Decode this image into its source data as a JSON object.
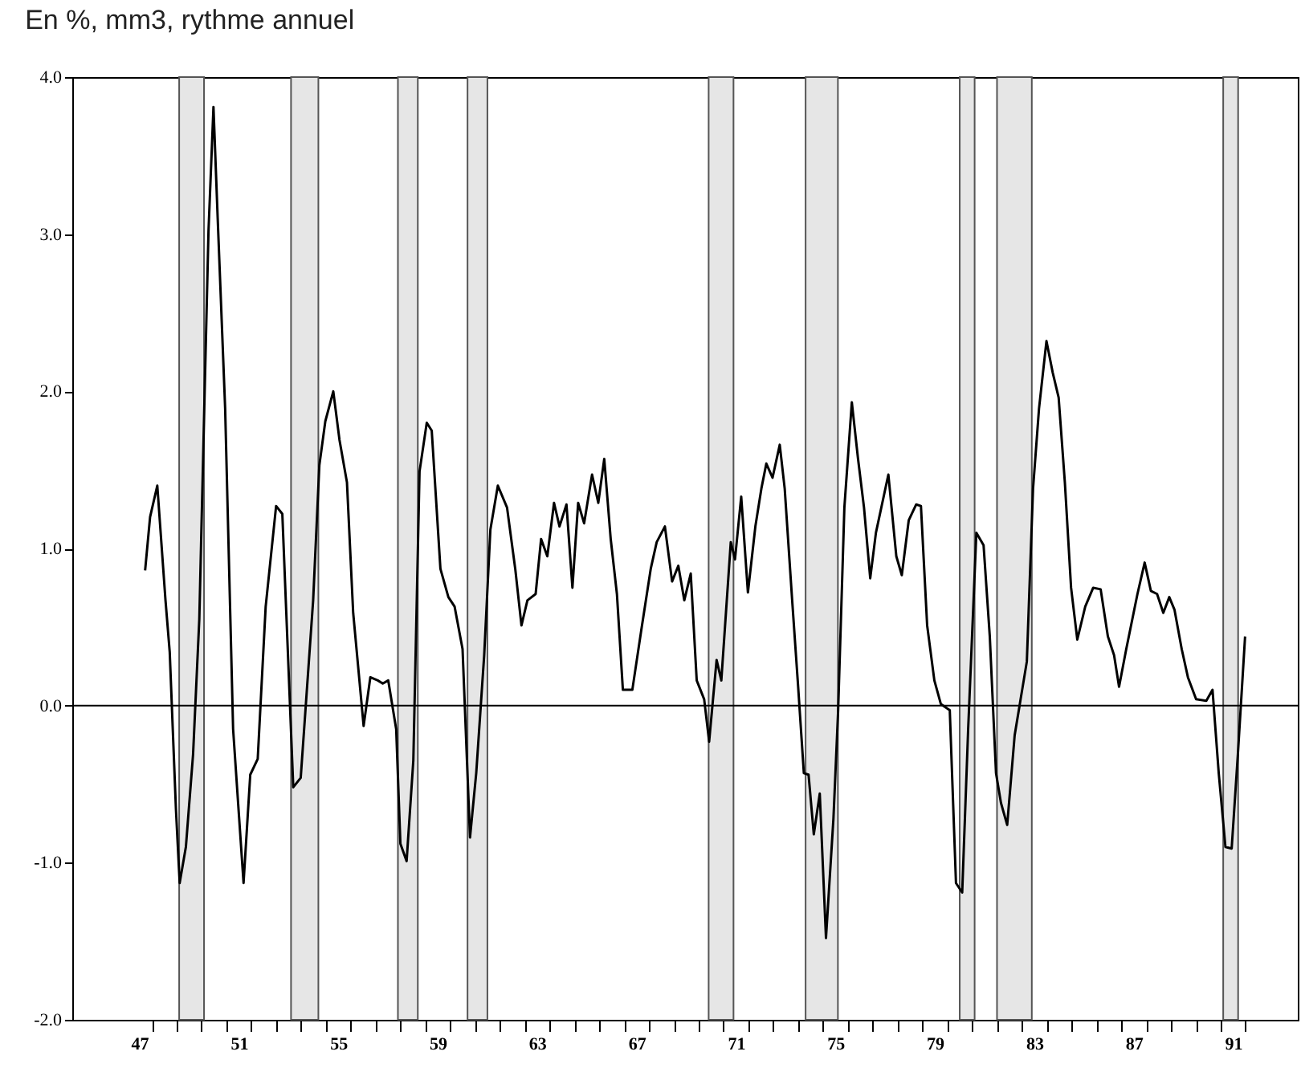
{
  "chart_data": {
    "type": "line",
    "title": "En %, mm3, rythme annuel",
    "x": [
      47.23,
      47.43,
      47.72,
      48.05,
      48.22,
      48.47,
      48.62,
      48.87,
      49.16,
      49.41,
      49.61,
      49.78,
      49.98,
      50.15,
      50.45,
      50.77,
      51.19,
      51.46,
      51.76,
      52.08,
      52.5,
      52.75,
      53.19,
      53.49,
      53.99,
      54.24,
      54.48,
      54.8,
      55.05,
      55.35,
      55.6,
      56.02,
      56.29,
      56.59,
      56.79,
      57.01,
      57.33,
      57.5,
      57.75,
      58.02,
      58.27,
      58.56,
      58.76,
      59.11,
      59.43,
      59.68,
      60.0,
      60.3,
      60.55,
      60.87,
      61.12,
      61.42,
      61.79,
      62.12,
      62.37,
      62.61,
      62.94,
      63.16,
      63.41,
      63.68,
      63.9,
      64.18,
      64.42,
      64.65,
      64.89,
      65.21,
      65.46,
      65.7,
      65.96,
      66.21,
      66.45,
      66.83,
      67.19,
      67.57,
      67.81,
      68.14,
      68.43,
      68.68,
      68.92,
      69.18,
      69.42,
      69.72,
      69.92,
      70.22,
      70.41,
      70.79,
      70.96,
      71.21,
      71.48,
      71.78,
      72.02,
      72.22,
      72.47,
      72.76,
      72.96,
      73.26,
      73.5,
      73.73,
      73.92,
      74.13,
      74.37,
      74.62,
      74.92,
      75.11,
      75.36,
      75.66,
      75.91,
      76.15,
      76.4,
      76.63,
      77.13,
      77.45,
      77.67,
      77.95,
      78.25,
      78.44,
      78.69,
      78.98,
      79.24,
      79.6,
      79.85,
      80.1,
      80.34,
      80.67,
      80.96,
      81.21,
      81.46,
      81.66,
      81.91,
      82.21,
      82.45,
      82.7,
      82.95,
      83.19,
      83.49,
      83.74,
      83.98,
      84.23,
      84.48,
      84.73,
      85.05,
      85.37,
      85.67,
      85.96,
      86.21,
      86.41,
      86.7,
      87.15,
      87.44,
      87.69,
      87.94,
      88.19,
      88.43,
      88.64,
      88.93,
      89.18,
      89.51,
      89.92,
      90.17,
      90.42,
      90.69,
      90.94,
      91.19,
      91.48
    ],
    "series": [
      {
        "color": "#000000",
        "values": [
          0.86,
          1.2,
          1.4,
          0.67,
          0.34,
          -0.66,
          -1.13,
          -0.9,
          -0.31,
          0.55,
          1.89,
          3.02,
          3.81,
          3.1,
          1.89,
          -0.15,
          -1.13,
          -0.44,
          -0.34,
          0.63,
          1.27,
          1.22,
          -0.52,
          -0.46,
          0.67,
          1.53,
          1.81,
          2.0,
          1.69,
          1.42,
          0.59,
          -0.13,
          0.18,
          0.16,
          0.14,
          0.16,
          -0.15,
          -0.88,
          -0.99,
          -0.35,
          1.49,
          1.8,
          1.75,
          0.87,
          0.69,
          0.63,
          0.36,
          -0.84,
          -0.43,
          0.32,
          1.12,
          1.4,
          1.26,
          0.87,
          0.51,
          0.67,
          0.71,
          1.06,
          0.95,
          1.29,
          1.14,
          1.28,
          0.75,
          1.29,
          1.16,
          1.47,
          1.29,
          1.57,
          1.06,
          0.71,
          0.1,
          0.1,
          0.48,
          0.87,
          1.04,
          1.14,
          0.79,
          0.89,
          0.67,
          0.84,
          0.16,
          0.04,
          -0.23,
          0.29,
          0.16,
          1.04,
          0.93,
          1.33,
          0.72,
          1.14,
          1.38,
          1.54,
          1.45,
          1.66,
          1.38,
          0.67,
          0.12,
          -0.43,
          -0.44,
          -0.82,
          -0.56,
          -1.48,
          -0.72,
          -0.03,
          1.26,
          1.93,
          1.57,
          1.26,
          0.81,
          1.1,
          1.47,
          0.95,
          0.83,
          1.18,
          1.28,
          1.27,
          0.51,
          0.16,
          0.01,
          -0.03,
          -1.13,
          -1.19,
          -0.15,
          1.1,
          1.02,
          0.44,
          -0.43,
          -0.62,
          -0.76,
          -0.19,
          0.04,
          0.28,
          1.38,
          1.89,
          2.32,
          2.12,
          1.96,
          1.42,
          0.75,
          0.42,
          0.63,
          0.75,
          0.74,
          0.44,
          0.32,
          0.12,
          0.36,
          0.71,
          0.91,
          0.73,
          0.71,
          0.59,
          0.69,
          0.61,
          0.36,
          0.18,
          0.04,
          0.03,
          0.1,
          -0.43,
          -0.9,
          -0.91,
          -0.31,
          0.44
        ]
      }
    ],
    "xlim": [
      44.3,
      93.6
    ],
    "xticks": [
      47,
      51,
      55,
      59,
      63,
      67,
      71,
      75,
      79,
      83,
      87,
      91,
      {
        "value": 47.5,
        "label": null
      },
      {
        "value": 48.5,
        "label": null
      },
      {
        "value": 49.5,
        "label": null
      },
      {
        "value": 50.5,
        "label": null
      },
      {
        "value": 51.5,
        "label": null
      },
      {
        "value": 52.5,
        "label": null
      },
      {
        "value": 53.5,
        "label": null
      },
      {
        "value": 54.5,
        "label": null
      },
      {
        "value": 55.5,
        "label": null
      },
      {
        "value": 56.5,
        "label": null
      },
      {
        "value": 57.5,
        "label": null
      },
      {
        "value": 58.5,
        "label": null
      },
      {
        "value": 59.5,
        "label": null
      },
      {
        "value": 60.5,
        "label": null
      },
      {
        "value": 61.5,
        "label": null
      },
      {
        "value": 62.5,
        "label": null
      },
      {
        "value": 63.5,
        "label": null
      },
      {
        "value": 64.5,
        "label": null
      },
      {
        "value": 65.5,
        "label": null
      },
      {
        "value": 66.5,
        "label": null
      },
      {
        "value": 67.5,
        "label": null
      },
      {
        "value": 68.5,
        "label": null
      },
      {
        "value": 69.5,
        "label": null
      },
      {
        "value": 70.5,
        "label": null
      },
      {
        "value": 71.5,
        "label": null
      },
      {
        "value": 72.5,
        "label": null
      },
      {
        "value": 73.5,
        "label": null
      },
      {
        "value": 74.5,
        "label": null
      },
      {
        "value": 75.5,
        "label": null
      },
      {
        "value": 76.5,
        "label": null
      },
      {
        "value": 77.5,
        "label": null
      },
      {
        "value": 78.5,
        "label": null
      },
      {
        "value": 79.5,
        "label": null
      },
      {
        "value": 80.5,
        "label": null
      },
      {
        "value": 81.5,
        "label": null
      },
      {
        "value": 82.5,
        "label": null
      },
      {
        "value": 83.5,
        "label": null
      },
      {
        "value": 84.5,
        "label": null
      },
      {
        "value": 85.5,
        "label": null
      },
      {
        "value": 86.5,
        "label": null
      },
      {
        "value": 87.5,
        "label": null
      },
      {
        "value": 88.5,
        "label": null
      },
      {
        "value": 89.5,
        "label": null
      },
      {
        "value": 90.5,
        "label": null
      },
      {
        "value": 91.5,
        "label": null
      }
    ],
    "ylim": [
      -2,
      4
    ],
    "yticks": [
      {
        "value": -2,
        "label": "-2.0"
      },
      {
        "value": -1,
        "label": "-1.0"
      },
      {
        "value": 0,
        "label": "0.0"
      },
      {
        "value": 1,
        "label": "1.0"
      },
      {
        "value": 2,
        "label": "2.0"
      },
      {
        "value": 3,
        "label": "3.0"
      },
      {
        "value": 4,
        "label": "4.0"
      }
    ],
    "bands": [
      {
        "axis": "x",
        "from": 48.6,
        "to": 49.6,
        "color": "#e6e6e6"
      },
      {
        "axis": "x",
        "from": 53.1,
        "to": 54.2,
        "color": "#e6e6e6"
      },
      {
        "axis": "x",
        "from": 57.4,
        "to": 58.2,
        "color": "#e6e6e6"
      },
      {
        "axis": "x",
        "from": 60.2,
        "to": 61.0,
        "color": "#e6e6e6"
      },
      {
        "axis": "x",
        "from": 69.9,
        "to": 70.9,
        "color": "#e6e6e6"
      },
      {
        "axis": "x",
        "from": 73.8,
        "to": 75.1,
        "color": "#e6e6e6"
      },
      {
        "axis": "x",
        "from": 80.0,
        "to": 80.6,
        "color": "#e6e6e6"
      },
      {
        "axis": "x",
        "from": 81.5,
        "to": 82.9,
        "color": "#e6e6e6"
      },
      {
        "axis": "x",
        "from": 90.6,
        "to": 91.2,
        "color": "#e6e6e6"
      }
    ],
    "ref_lines": [
      {
        "axis": "y",
        "value": 0,
        "color": "#000000"
      }
    ],
    "grid": false
  }
}
